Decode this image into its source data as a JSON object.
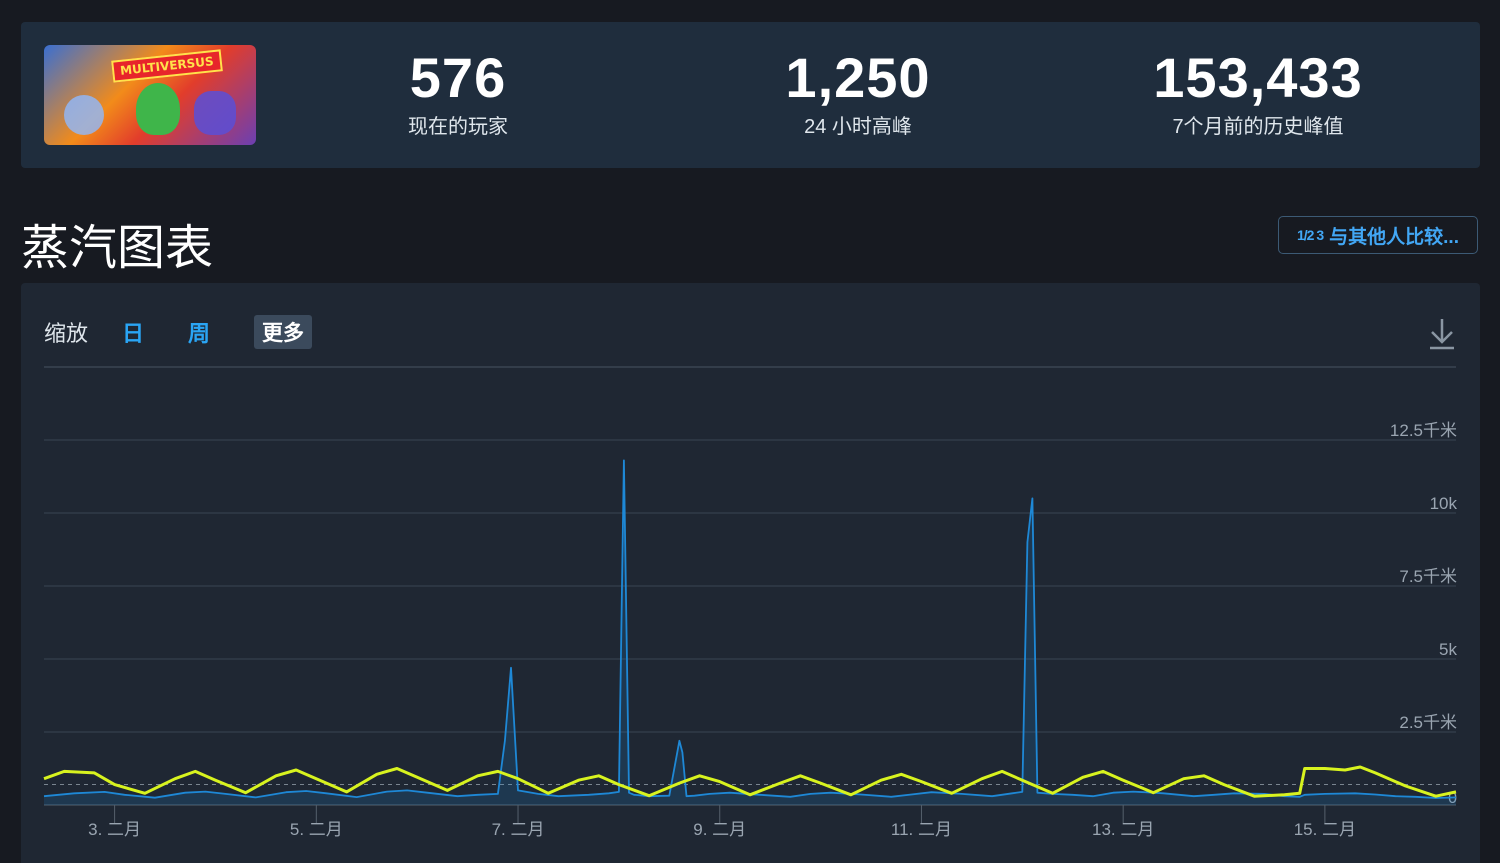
{
  "stats": [
    {
      "value": "576",
      "label": "现在的玩家"
    },
    {
      "value": "1,250",
      "label": "24 小时高峰"
    },
    {
      "value": "153,433",
      "label": "7个月前的历史峰值"
    }
  ],
  "game_logo_text": "MULTIVERSUS",
  "section_title": "蒸汽图表",
  "compare_button": {
    "icon": "fraction-icon",
    "icon_text": "1/2 3",
    "label": "与其他人比较..."
  },
  "zoom": {
    "label": "缩放",
    "options": [
      "日",
      "周"
    ],
    "more": "更多"
  },
  "download_icon": "download-icon",
  "colors": {
    "players_line": "#1e88d6",
    "average_line": "#d8f31f",
    "accent": "#2aa5f5"
  },
  "chart_data": {
    "type": "line",
    "title": "",
    "xlabel": "",
    "ylabel": "",
    "ylim": [
      0,
      15000
    ],
    "y_ticks": [
      {
        "value": 2500,
        "label": "2.5千米"
      },
      {
        "value": 5000,
        "label": "5k"
      },
      {
        "value": 7500,
        "label": "7.5千米"
      },
      {
        "value": 10000,
        "label": "10k"
      },
      {
        "value": 12500,
        "label": "12.5千米"
      }
    ],
    "y_zero_label": "0",
    "x_range": [
      2.3,
      16.3
    ],
    "x_ticks": [
      {
        "value": 3,
        "label": "3. 二月"
      },
      {
        "value": 5,
        "label": "5. 二月"
      },
      {
        "value": 7,
        "label": "7. 二月"
      },
      {
        "value": 9,
        "label": "9. 二月"
      },
      {
        "value": 11,
        "label": "11. 二月"
      },
      {
        "value": 13,
        "label": "13. 二月"
      },
      {
        "value": 15,
        "label": "15. 二月"
      }
    ],
    "reference_line": 700,
    "series": [
      {
        "x": [
          2.3,
          2.6,
          2.9,
          3.1,
          3.4,
          3.7,
          3.9,
          4.1,
          4.4,
          4.7,
          4.9,
          5.1,
          5.4,
          5.7,
          5.9,
          6.1,
          6.4,
          6.6,
          6.8,
          6.87,
          6.93,
          7.0,
          7.2,
          7.4,
          7.7,
          7.9,
          8.0,
          8.05,
          8.1,
          8.15,
          8.3,
          8.5,
          8.6,
          8.63,
          8.67,
          8.75,
          8.9,
          9.1,
          9.4,
          9.7,
          9.9,
          10.1,
          10.4,
          10.7,
          10.9,
          11.1,
          11.4,
          11.7,
          11.9,
          12.0,
          12.05,
          12.1,
          12.15,
          12.3,
          12.5,
          12.7,
          12.9,
          13.1,
          13.4,
          13.7,
          13.9,
          14.1,
          14.4,
          14.6,
          14.75,
          14.8,
          15.0,
          15.3,
          15.5,
          15.7,
          15.9,
          16.1,
          16.3
        ],
        "values": [
          300,
          400,
          450,
          350,
          250,
          420,
          460,
          380,
          260,
          440,
          480,
          400,
          270,
          460,
          500,
          420,
          300,
          350,
          380,
          2200,
          4700,
          500,
          380,
          300,
          350,
          400,
          450,
          11800,
          420,
          350,
          300,
          320,
          2200,
          1800,
          300,
          320,
          380,
          420,
          350,
          280,
          380,
          420,
          360,
          280,
          360,
          440,
          380,
          300,
          400,
          450,
          9000,
          10500,
          420,
          380,
          350,
          300,
          420,
          460,
          400,
          300,
          350,
          400,
          380,
          300,
          280,
          350,
          380,
          400,
          360,
          300,
          280,
          240,
          260
        ]
      },
      {
        "x": [
          2.3,
          2.5,
          2.8,
          3.0,
          3.3,
          3.6,
          3.8,
          4.0,
          4.3,
          4.6,
          4.8,
          5.0,
          5.3,
          5.6,
          5.8,
          6.0,
          6.3,
          6.6,
          6.8,
          7.0,
          7.3,
          7.6,
          7.8,
          8.0,
          8.3,
          8.6,
          8.8,
          9.0,
          9.3,
          9.6,
          9.8,
          10.0,
          10.3,
          10.6,
          10.8,
          11.0,
          11.3,
          11.6,
          11.8,
          12.0,
          12.3,
          12.6,
          12.8,
          13.0,
          13.3,
          13.6,
          13.8,
          14.0,
          14.3,
          14.6,
          14.75,
          14.8,
          15.0,
          15.2,
          15.35,
          15.5,
          15.8,
          16.1,
          16.3
        ],
        "values": [
          900,
          1150,
          1100,
          700,
          400,
          900,
          1150,
          850,
          420,
          1000,
          1200,
          900,
          450,
          1050,
          1250,
          950,
          500,
          1000,
          1150,
          900,
          400,
          850,
          1000,
          700,
          320,
          750,
          1000,
          800,
          350,
          750,
          1000,
          750,
          350,
          850,
          1050,
          800,
          400,
          900,
          1150,
          850,
          400,
          950,
          1150,
          850,
          420,
          900,
          1000,
          700,
          300,
          350,
          400,
          1250,
          1250,
          1200,
          1300,
          1100,
          650,
          300,
          450
        ]
      }
    ]
  }
}
